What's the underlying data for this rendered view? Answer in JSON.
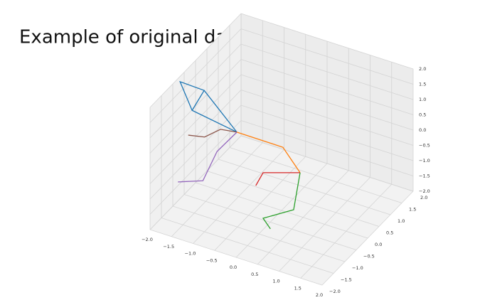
{
  "chart_data": {
    "type": "line3d",
    "title": "Example of original data",
    "xlim": [
      -2,
      2
    ],
    "ylim": [
      -2,
      2
    ],
    "zlim": [
      -2,
      2
    ],
    "xticks": [
      {
        "value": -2,
        "label": "−2.0"
      },
      {
        "value": -1.5,
        "label": "−1.5"
      },
      {
        "value": -1,
        "label": "−1.0"
      },
      {
        "value": -0.5,
        "label": "−0.5"
      },
      {
        "value": 0,
        "label": "0.0"
      },
      {
        "value": 0.5,
        "label": "0.5"
      },
      {
        "value": 1,
        "label": "1.0"
      },
      {
        "value": 1.5,
        "label": "1.5"
      },
      {
        "value": 2,
        "label": "2.0"
      }
    ],
    "yticks": [
      {
        "value": -2,
        "label": "−2.0"
      },
      {
        "value": -1.5,
        "label": "−1.5"
      },
      {
        "value": -1,
        "label": "−1.0"
      },
      {
        "value": -0.5,
        "label": "−0.5"
      },
      {
        "value": 0,
        "label": "0.0"
      },
      {
        "value": 0.5,
        "label": "0.5"
      },
      {
        "value": 1,
        "label": "1.0"
      },
      {
        "value": 1.5,
        "label": "1.5"
      },
      {
        "value": 2,
        "label": "2.0"
      }
    ],
    "zticks": [
      {
        "value": -2,
        "label": "−2.0"
      },
      {
        "value": -1.5,
        "label": "−1.5"
      },
      {
        "value": -1,
        "label": "−1.0"
      },
      {
        "value": -0.5,
        "label": "−0.5"
      },
      {
        "value": 0,
        "label": "0.0"
      },
      {
        "value": 0.5,
        "label": "0.5"
      },
      {
        "value": 1,
        "label": "1.0"
      },
      {
        "value": 1.5,
        "label": "1.5"
      },
      {
        "value": 2,
        "label": "2.0"
      }
    ],
    "grid": true,
    "series": [
      {
        "color": "#1f77b4",
        "x": [
          -1.8,
          -1.04,
          -2.08,
          -2.36,
          -1.8,
          -2.08
        ],
        "y": [
          0,
          0,
          0,
          0,
          0,
          0
        ],
        "z": [
          1.11,
          0.09,
          0.33,
          1.14,
          1.11,
          0.33
        ]
      },
      {
        "color": "#8c564b",
        "x": [
          -1.04,
          -1.42,
          -1.79,
          -2.17
        ],
        "y": [
          0,
          0,
          0,
          0
        ],
        "z": [
          0.09,
          0.01,
          -0.41,
          -0.52
        ]
      },
      {
        "color": "#9467bd",
        "x": [
          -1.04,
          -1.5,
          -1.83,
          -2.41
        ],
        "y": [
          0,
          0,
          0,
          0
        ],
        "z": [
          0.09,
          -0.75,
          -1.86,
          -2.16
        ]
      },
      {
        "color": "#ff7f0e",
        "x": [
          -1.04,
          0.03,
          0.43
        ],
        "y": [
          0,
          0,
          0
        ],
        "z": [
          0.09,
          0.08,
          -0.57
        ]
      },
      {
        "color": "#d62728",
        "x": [
          0.43,
          -0.43,
          -0.6
        ],
        "y": [
          0,
          0,
          0
        ],
        "z": [
          -0.57,
          -0.96,
          -1.46
        ]
      },
      {
        "color": "#2ca02c",
        "x": [
          0.43,
          0.28,
          -0.43,
          -0.26
        ],
        "y": [
          0,
          0,
          0,
          0
        ],
        "z": [
          -0.57,
          -1.85,
          -2.45,
          -2.72
        ]
      }
    ]
  }
}
